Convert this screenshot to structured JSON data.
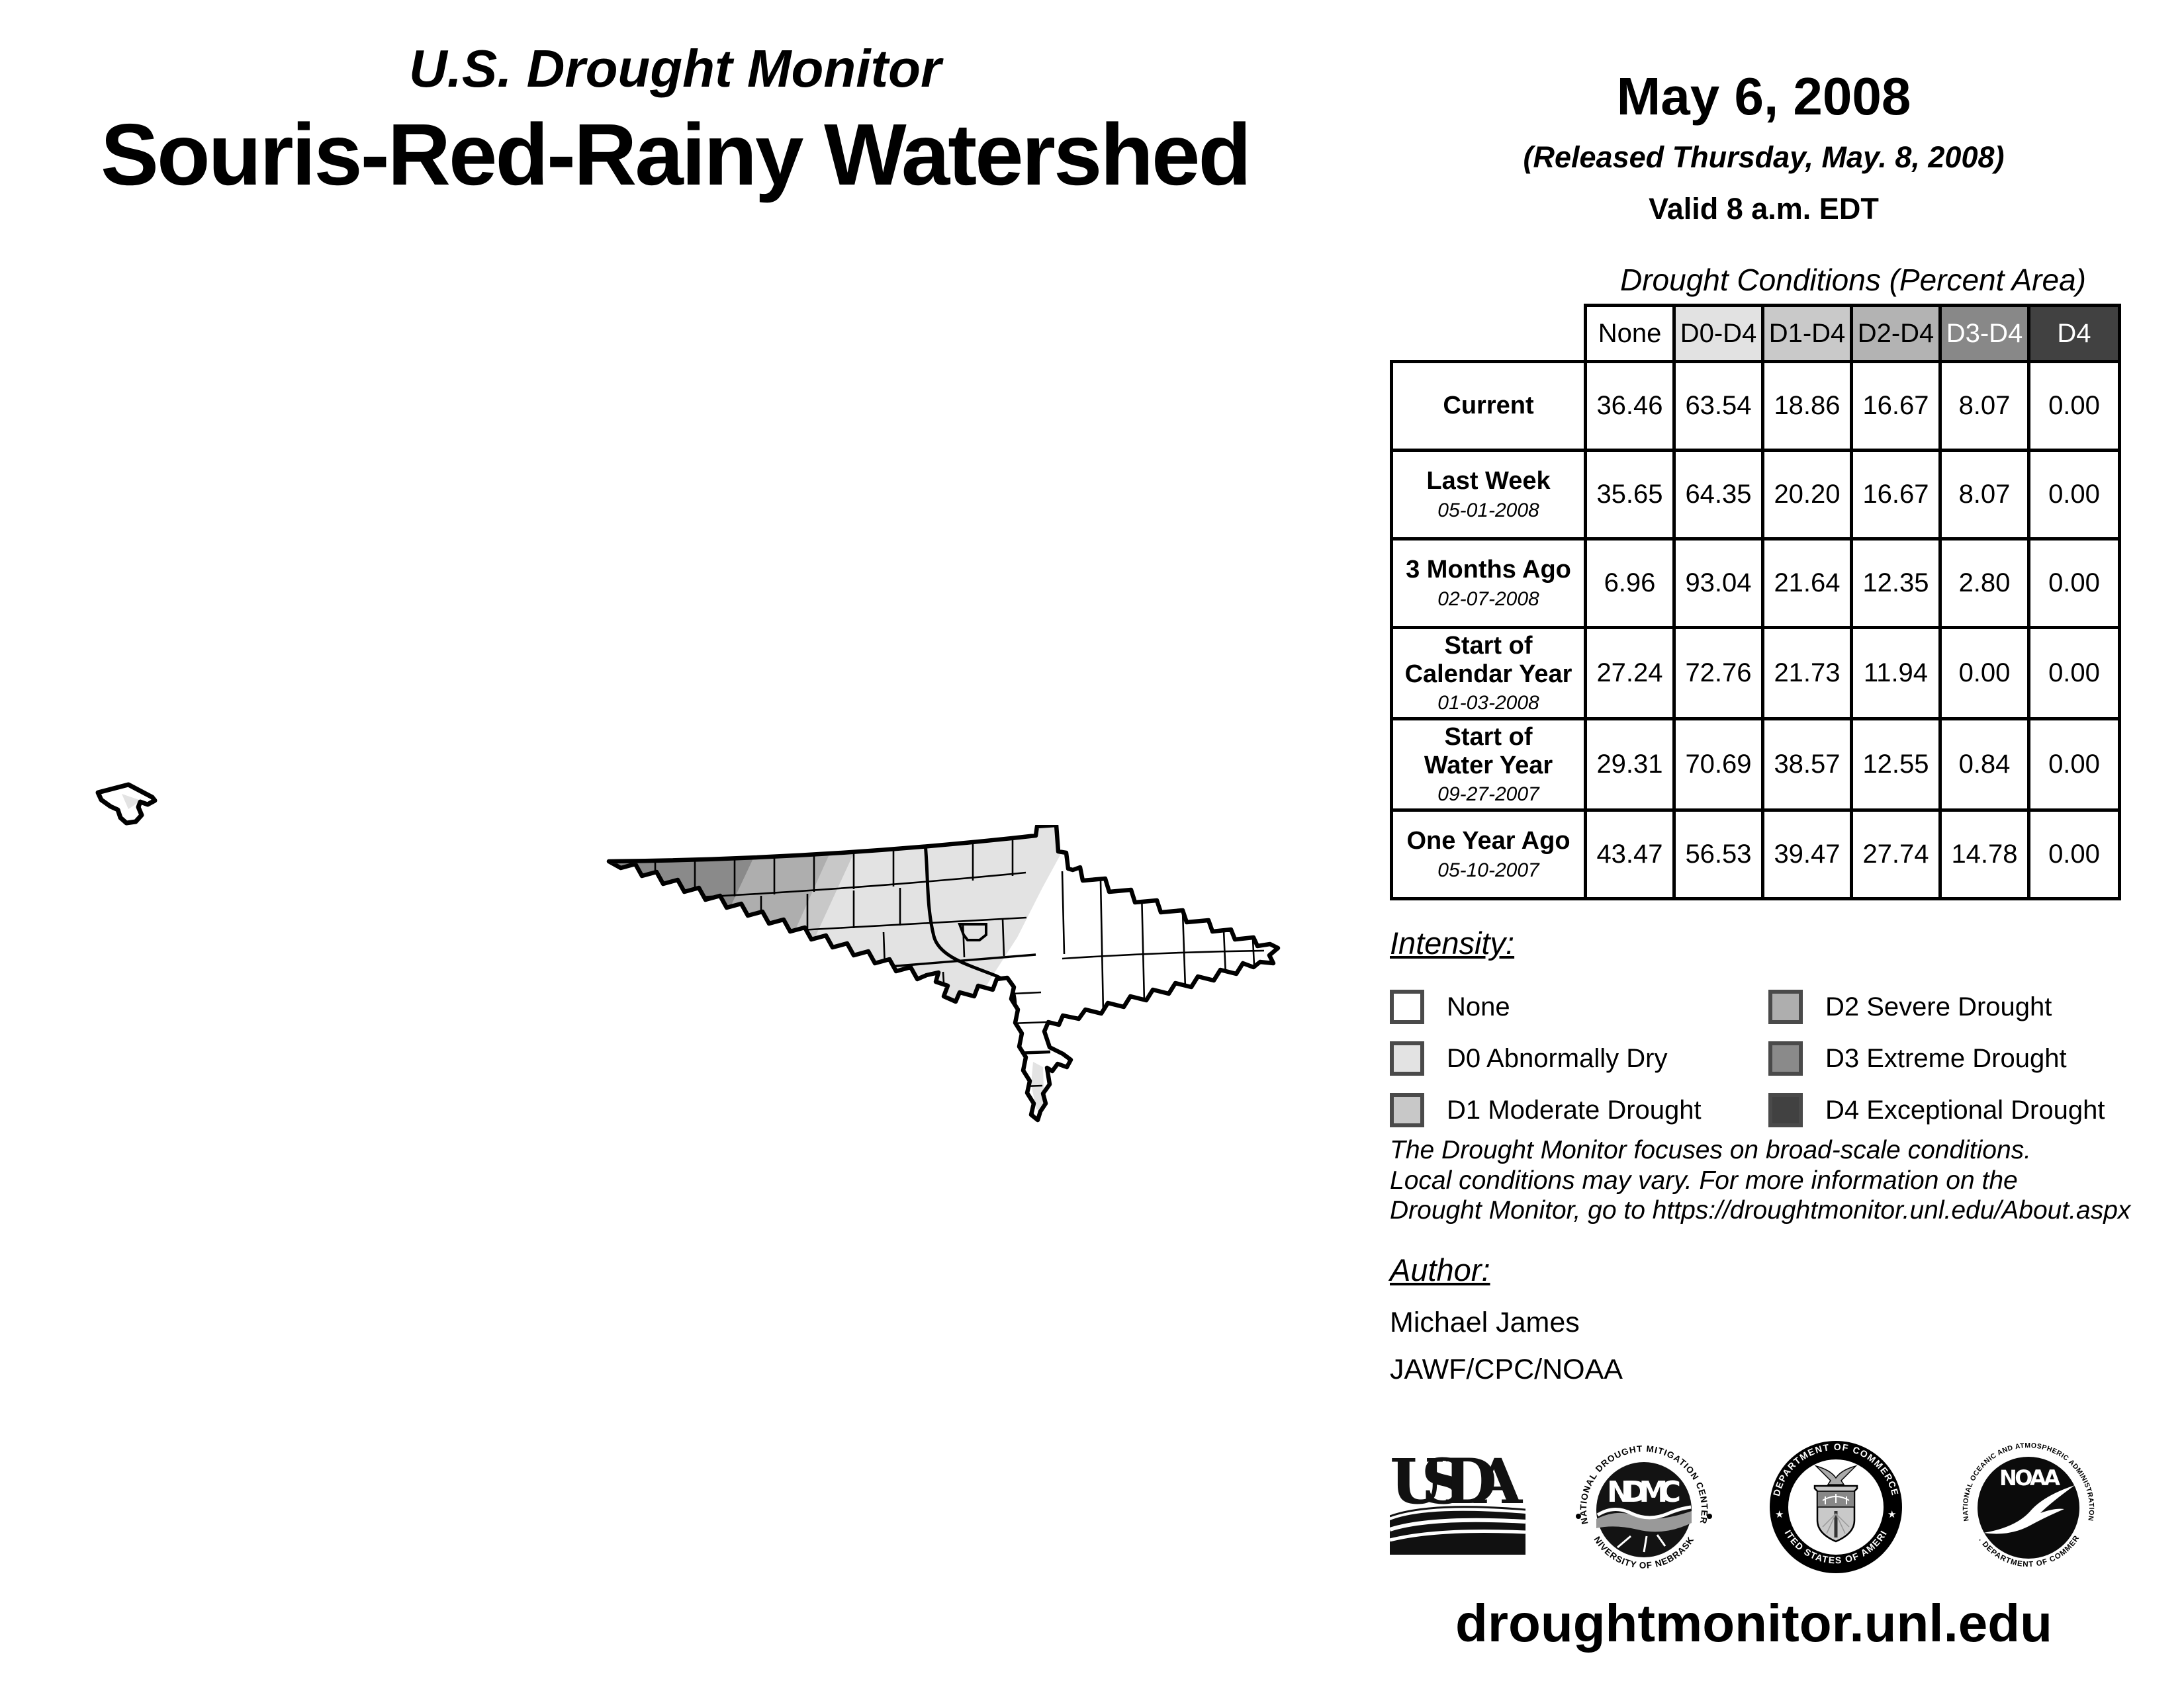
{
  "header": {
    "monitor_title": "U.S. Drought Monitor",
    "region_title": "Souris-Red-Rainy Watershed",
    "date": "May 6, 2008",
    "released": "(Released Thursday, May. 8, 2008)",
    "valid": "Valid 8 a.m. EDT"
  },
  "table": {
    "title": "Drought Conditions (Percent Area)",
    "columns": [
      {
        "label": "None",
        "bg": "#ffffff",
        "fg": "#000000"
      },
      {
        "label": "D0-D4",
        "bg": "#e2e2e2",
        "fg": "#000000"
      },
      {
        "label": "D1-D4",
        "bg": "#c9c9c9",
        "fg": "#000000"
      },
      {
        "label": "D2-D4",
        "bg": "#b3b3b3",
        "fg": "#000000"
      },
      {
        "label": "D3-D4",
        "bg": "#888888",
        "fg": "#ffffff"
      },
      {
        "label": "D4",
        "bg": "#414141",
        "fg": "#ffffff"
      }
    ],
    "rows": [
      {
        "label": "Current",
        "date": "",
        "values": [
          "36.46",
          "63.54",
          "18.86",
          "16.67",
          "8.07",
          "0.00"
        ]
      },
      {
        "label": "Last Week",
        "date": "05-01-2008",
        "values": [
          "35.65",
          "64.35",
          "20.20",
          "16.67",
          "8.07",
          "0.00"
        ]
      },
      {
        "label": "3 Months Ago",
        "date": "02-07-2008",
        "values": [
          "6.96",
          "93.04",
          "21.64",
          "12.35",
          "2.80",
          "0.00"
        ]
      },
      {
        "label": "Start of\nCalendar Year",
        "date": "01-03-2008",
        "values": [
          "27.24",
          "72.76",
          "21.73",
          "11.94",
          "0.00",
          "0.00"
        ]
      },
      {
        "label": "Start of\nWater Year",
        "date": "09-27-2007",
        "values": [
          "29.31",
          "70.69",
          "38.57",
          "12.55",
          "0.84",
          "0.00"
        ]
      },
      {
        "label": "One Year Ago",
        "date": "05-10-2007",
        "values": [
          "43.47",
          "56.53",
          "39.47",
          "27.74",
          "14.78",
          "0.00"
        ]
      }
    ]
  },
  "legend": {
    "title": "Intensity:",
    "items": [
      {
        "label": "None",
        "color": "#ffffff"
      },
      {
        "label": "D0 Abnormally Dry",
        "color": "#e3e3e3"
      },
      {
        "label": "D1 Moderate Drought",
        "color": "#c8c8c8"
      },
      {
        "label": "D2 Severe Drought",
        "color": "#aeaeae"
      },
      {
        "label": "D3 Extreme Drought",
        "color": "#8a8a8a"
      },
      {
        "label": "D4 Exceptional Drought",
        "color": "#414141"
      }
    ]
  },
  "disclaimer": {
    "line1": "The Drought Monitor focuses on broad-scale conditions.",
    "line2": "Local conditions may vary. For more information on the",
    "line3": "Drought Monitor, go to https://droughtmonitor.unl.edu/About.aspx"
  },
  "author": {
    "title": "Author:",
    "name": "Michael James",
    "affiliation": "JAWF/CPC/NOAA"
  },
  "logos": {
    "usda": {
      "text": "USDA"
    },
    "ndmc": {
      "top": "NATIONAL DROUGHT MITIGATION CENTER",
      "center": "NDMC",
      "bottom": "UNIVERSITY OF NEBRASKA"
    },
    "commerce": {
      "top": "DEPARTMENT OF COMMERCE",
      "bottom": "UNITED STATES OF AMERICA"
    },
    "noaa": {
      "top": "NATIONAL OCEANIC AND ATMOSPHERIC ADMINISTRATION",
      "center": "NOAA",
      "bottom": "U.S. DEPARTMENT OF COMMERCE"
    }
  },
  "footer": {
    "url": "droughtmonitor.unl.edu"
  }
}
